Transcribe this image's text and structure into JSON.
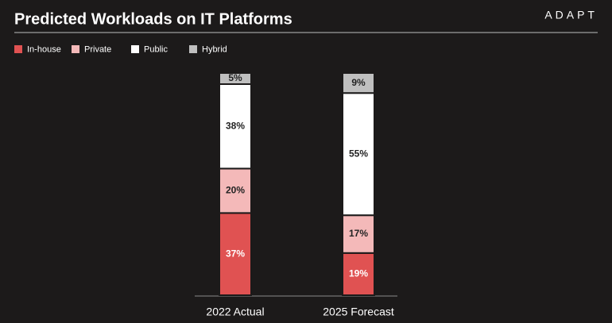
{
  "chart_data": {
    "type": "stacked-bar",
    "title": "Predicted Workloads on IT Platforms",
    "logo": "ADAPT",
    "categories": [
      "2022 Actual",
      "2025 Forecast"
    ],
    "series": [
      {
        "name": "In-house",
        "color": "#e05252",
        "values": [
          37,
          19
        ],
        "value_labels": [
          "37%",
          "19%"
        ]
      },
      {
        "name": "Private",
        "color": "#f4b9b9",
        "values": [
          20,
          17
        ],
        "value_labels": [
          "20%",
          "17%"
        ]
      },
      {
        "name": "Public",
        "color": "#ffffff",
        "values": [
          38,
          55
        ],
        "value_labels": [
          "38%",
          "55%"
        ]
      },
      {
        "name": "Hybrid",
        "color": "#bfbfbf",
        "values": [
          5,
          9
        ],
        "value_labels": [
          "5%",
          "9%"
        ]
      }
    ],
    "background": "#1c1a1a"
  }
}
